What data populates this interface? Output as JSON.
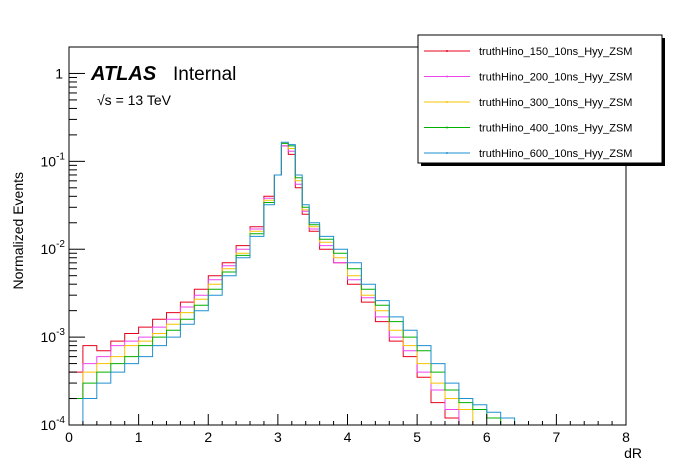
{
  "chart_data": {
    "type": "line",
    "title": "",
    "xlabel": "dR",
    "ylabel": "Normalized Events",
    "xlim": [
      0,
      8
    ],
    "ylim": [
      0.0001,
      2
    ],
    "yscale": "log",
    "grid": false,
    "legend_position": "top-right",
    "x_ticks": [
      "0",
      "1",
      "2",
      "3",
      "4",
      "5",
      "6",
      "7",
      "8"
    ],
    "y_ticks": [
      {
        "value": 1,
        "label": "1"
      },
      {
        "value": 0.1,
        "label": "10^-1"
      },
      {
        "value": 0.01,
        "label": "10^-2"
      },
      {
        "value": 0.001,
        "label": "10^-3"
      },
      {
        "value": 0.0001,
        "label": "10^-4"
      }
    ],
    "x": [
      0.1,
      0.3,
      0.5,
      0.7,
      0.9,
      1.1,
      1.3,
      1.5,
      1.7,
      1.9,
      2.1,
      2.3,
      2.5,
      2.7,
      2.9,
      3.0,
      3.1,
      3.2,
      3.3,
      3.4,
      3.5,
      3.7,
      3.9,
      4.1,
      4.3,
      4.5,
      4.7,
      4.9,
      5.1,
      5.3,
      5.5,
      5.7,
      5.9,
      6.1,
      6.3,
      6.5,
      6.7,
      6.9,
      7.1,
      7.3,
      7.5,
      7.7,
      7.9
    ],
    "series": [
      {
        "name": "truthHino_150_10ns_Hyy_ZSM",
        "color": "#e8001c",
        "values": [
          0.0004,
          0.0008,
          0.0007,
          0.0009,
          0.0011,
          0.0013,
          0.0016,
          0.0019,
          0.0025,
          0.0035,
          0.005,
          0.007,
          0.011,
          0.018,
          0.04,
          0.07,
          0.15,
          0.12,
          0.05,
          0.025,
          0.016,
          0.01,
          0.007,
          0.004,
          0.0025,
          0.0015,
          0.0009,
          0.0006,
          0.00035,
          0.00018,
          0.00012,
          0.0001,
          0.0001,
          0.0001,
          0.0001,
          0.0001,
          0.0001,
          0.0001,
          0.0001,
          0.0001,
          0.0001,
          0.0001,
          0.0001
        ]
      },
      {
        "name": "truthHino_200_10ns_Hyy_ZSM",
        "color": "#ee44ee",
        "values": [
          0.0002,
          0.0005,
          0.0006,
          0.0008,
          0.0009,
          0.001,
          0.0013,
          0.0016,
          0.0022,
          0.003,
          0.0045,
          0.0065,
          0.01,
          0.017,
          0.038,
          0.07,
          0.15,
          0.13,
          0.055,
          0.027,
          0.017,
          0.011,
          0.007,
          0.0045,
          0.0028,
          0.0017,
          0.001,
          0.0007,
          0.0004,
          0.00025,
          0.00015,
          0.0001,
          0.0001,
          0.0001,
          0.0001,
          0.0001,
          0.0001,
          0.0001,
          0.0001,
          0.0001,
          0.0001,
          0.0001,
          0.0001
        ]
      },
      {
        "name": "truthHino_300_10ns_Hyy_ZSM",
        "color": "#f5c400",
        "values": [
          0.0002,
          0.0004,
          0.0005,
          0.0006,
          0.0008,
          0.0009,
          0.0011,
          0.0014,
          0.0019,
          0.0027,
          0.004,
          0.006,
          0.009,
          0.016,
          0.036,
          0.07,
          0.16,
          0.14,
          0.06,
          0.028,
          0.018,
          0.012,
          0.008,
          0.005,
          0.003,
          0.002,
          0.0012,
          0.0008,
          0.0005,
          0.0003,
          0.0002,
          0.00015,
          0.0001,
          0.0001,
          0.0001,
          0.0001,
          0.0001,
          0.0001,
          0.0001,
          0.0001,
          0.0001,
          0.0001,
          0.0001
        ]
      },
      {
        "name": "truthHino_400_10ns_Hyy_ZSM",
        "color": "#00b000",
        "values": [
          0.0002,
          0.0003,
          0.0004,
          0.0005,
          0.0006,
          0.0008,
          0.001,
          0.0012,
          0.0016,
          0.0023,
          0.0035,
          0.0055,
          0.0085,
          0.015,
          0.034,
          0.07,
          0.16,
          0.15,
          0.065,
          0.03,
          0.019,
          0.013,
          0.009,
          0.006,
          0.0035,
          0.0023,
          0.0015,
          0.001,
          0.0007,
          0.0004,
          0.00025,
          0.00018,
          0.00015,
          0.00012,
          0.0001,
          0.0001,
          0.0001,
          0.0001,
          0.0001,
          0.0001,
          0.0001,
          0.0001,
          0.0001
        ]
      },
      {
        "name": "truthHino_600_10ns_Hyy_ZSM",
        "color": "#1e90d0",
        "values": [
          0.0001,
          0.0002,
          0.0003,
          0.0004,
          0.0005,
          0.0006,
          0.0008,
          0.001,
          0.0014,
          0.002,
          0.003,
          0.005,
          0.008,
          0.014,
          0.032,
          0.07,
          0.165,
          0.155,
          0.07,
          0.032,
          0.02,
          0.014,
          0.01,
          0.007,
          0.004,
          0.0026,
          0.0017,
          0.0012,
          0.0008,
          0.0005,
          0.0003,
          0.0002,
          0.00017,
          0.00014,
          0.00012,
          0.0001,
          0.0001,
          0.0001,
          0.0001,
          0.0001,
          0.0001,
          0.0001,
          0.0001
        ]
      }
    ],
    "annotations": {
      "atlas_label": "ATLAS",
      "atlas_status": "Internal",
      "energy_label": "√s = 13 TeV"
    }
  }
}
